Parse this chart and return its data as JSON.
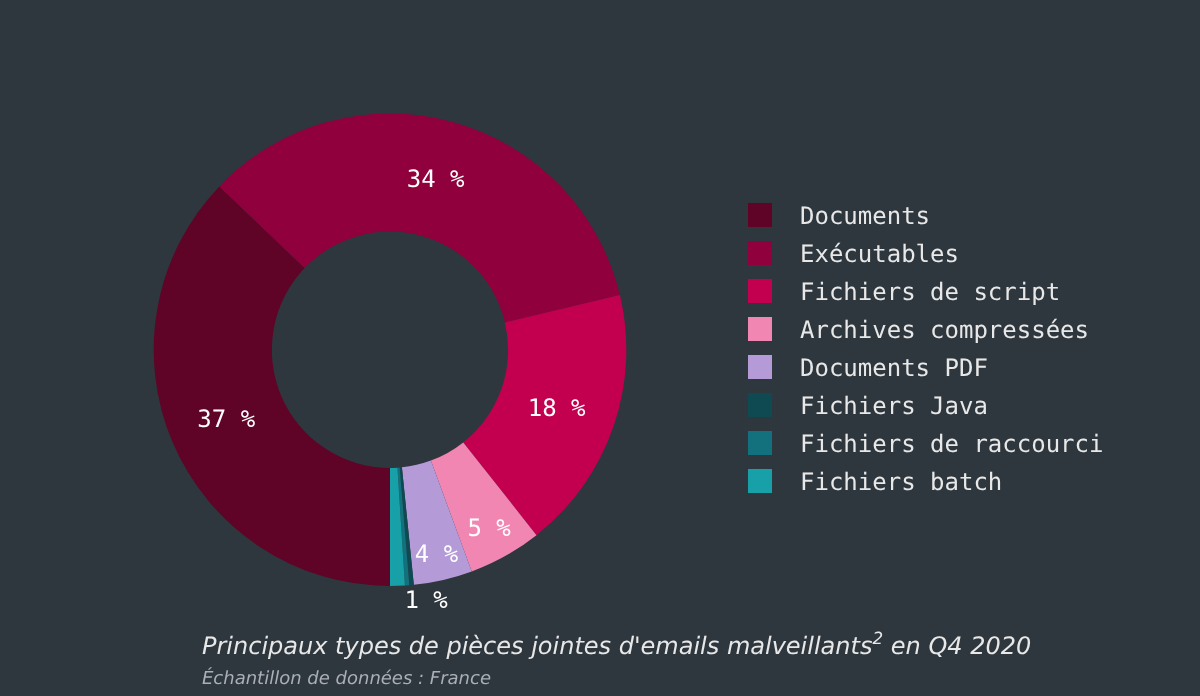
{
  "chart_data": {
    "type": "donut",
    "title": "Principaux types de pièces jointes d'emails malveillants$^{2}$ en Q4 2020",
    "subtitle": "Échantillon de données : France",
    "categories": [
      "Documents",
      "Exécutables",
      "Fichiers de script",
      "Archives compressées",
      "Documents PDF",
      "Fichiers Java",
      "Fichiers de raccourci",
      "Fichiers batch"
    ],
    "values": [
      37,
      34,
      18,
      5,
      4,
      0.3,
      0.3,
      1
    ],
    "value_labels": [
      "37 %",
      "34 %",
      "18 %",
      "5 %",
      "4 %",
      null,
      null,
      "1 %"
    ],
    "colors": [
      "#5f0427",
      "#8f003c",
      "#c3004f",
      "#f286b3",
      "#b59ad8",
      "#0f4a52",
      "#12717d",
      "#18a0a8"
    ],
    "legend": "right"
  }
}
